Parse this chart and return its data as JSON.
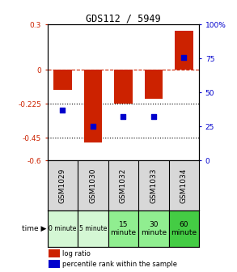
{
  "title": "GDS112 / 5949",
  "samples": [
    "GSM1029",
    "GSM1030",
    "GSM1032",
    "GSM1033",
    "GSM1034"
  ],
  "time_labels": [
    "0 minute",
    "5 minute",
    "15\nminute",
    "30\nminute",
    "60\nminute"
  ],
  "time_colors": [
    "#d4f7d4",
    "#d4f7d4",
    "#90ee90",
    "#90ee90",
    "#44cc44"
  ],
  "log_ratios": [
    -0.13,
    -0.48,
    -0.225,
    -0.19,
    0.26
  ],
  "percentile_ranks": [
    37,
    25,
    32,
    32,
    76
  ],
  "bar_color": "#cc2200",
  "dot_color": "#0000cc",
  "ylim_left": [
    -0.6,
    0.3
  ],
  "ylim_right": [
    0,
    100
  ],
  "yticks_left": [
    0.3,
    0.0,
    -0.225,
    -0.45,
    -0.6
  ],
  "ytick_labels_left": [
    "0.3",
    "0",
    "-0.225",
    "-0.45",
    "-0.6"
  ],
  "yticks_right": [
    100,
    75,
    50,
    25,
    0
  ],
  "ytick_labels_right": [
    "100%",
    "75",
    "50",
    "25",
    "0"
  ],
  "hlines": [
    0.0,
    -0.225,
    -0.45
  ],
  "hline_styles": [
    "dashed",
    "dotted",
    "dotted"
  ],
  "hline_colors": [
    "#cc2200",
    "black",
    "black"
  ],
  "bar_width": 0.6,
  "background_color": "#ffffff",
  "plot_bg_color": "#ffffff",
  "sample_bg_color": "#d8d8d8"
}
